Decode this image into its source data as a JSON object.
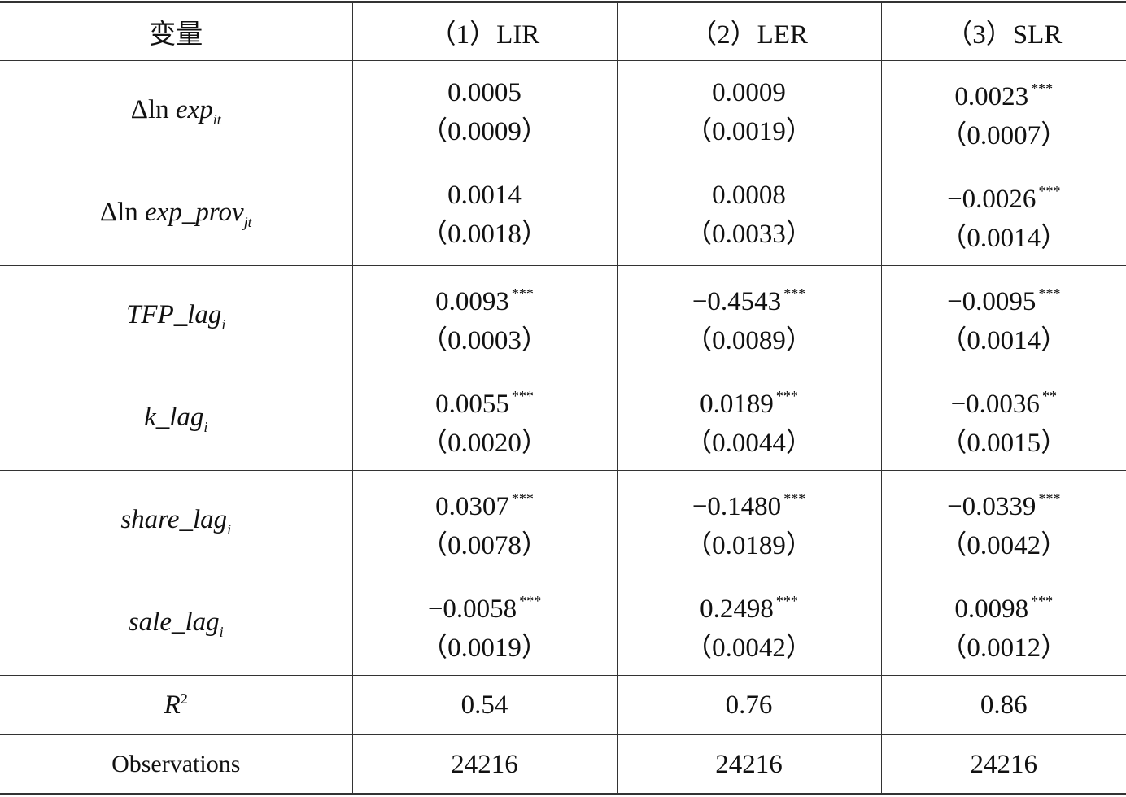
{
  "table": {
    "header": [
      "变量",
      "（1）LIR",
      "（2）LER",
      "（3）SLR"
    ],
    "rows": [
      {
        "variable": {
          "prefix": "Δln",
          "name": "exp",
          "sub": "it"
        },
        "cells": [
          {
            "coef": "0.0005",
            "se": "（0.0009）"
          },
          {
            "coef": "0.0009",
            "se": "（0.0019）"
          },
          {
            "coef": "0.0023",
            "stars": "***",
            "se": "（0.0007）"
          }
        ]
      },
      {
        "variable": {
          "prefix": "Δln",
          "name": "exp_prov",
          "sub": "jt"
        },
        "cells": [
          {
            "coef": "0.0014",
            "se": "（0.0018）"
          },
          {
            "coef": "0.0008",
            "se": "（0.0033）"
          },
          {
            "coef": "−0.0026",
            "stars": "***",
            "se": "（0.0014）"
          }
        ]
      },
      {
        "variable": {
          "name": "TFP_lag",
          "sub": "i"
        },
        "cells": [
          {
            "coef": "0.0093",
            "stars": "***",
            "se": "（0.0003）"
          },
          {
            "coef": "−0.4543",
            "stars": "***",
            "se": "（0.0089）"
          },
          {
            "coef": "−0.0095",
            "stars": "***",
            "se": "（0.0014）"
          }
        ]
      },
      {
        "variable": {
          "name": "k_lag",
          "sub": "i"
        },
        "cells": [
          {
            "coef": "0.0055",
            "stars": "***",
            "se": "（0.0020）"
          },
          {
            "coef": "0.0189",
            "stars": "***",
            "se": "（0.0044）"
          },
          {
            "coef": "−0.0036",
            "stars": "**",
            "se": "（0.0015）"
          }
        ]
      },
      {
        "variable": {
          "name": "share_lag",
          "sub": "i"
        },
        "cells": [
          {
            "coef": "0.0307",
            "stars": "***",
            "se": "（0.0078）"
          },
          {
            "coef": "−0.1480",
            "stars": "***",
            "se": "（0.0189）"
          },
          {
            "coef": "−0.0339",
            "stars": "***",
            "se": "（0.0042）"
          }
        ]
      },
      {
        "variable": {
          "name": "sale_lag",
          "sub": "i"
        },
        "cells": [
          {
            "coef": "−0.0058",
            "stars": "***",
            "se": "（0.0019）"
          },
          {
            "coef": "0.2498",
            "stars": "***",
            "se": "（0.0042）"
          },
          {
            "coef": "0.0098",
            "stars": "***",
            "se": "（0.0012）"
          }
        ]
      },
      {
        "variable": {
          "name": "R",
          "sup": "2"
        },
        "cells": [
          {
            "coef": "0.54"
          },
          {
            "coef": "0.76"
          },
          {
            "coef": "0.86"
          }
        ]
      },
      {
        "variable": {
          "text": "Observations"
        },
        "cells": [
          {
            "coef": "24216"
          },
          {
            "coef": "24216"
          },
          {
            "coef": "24216"
          }
        ]
      }
    ]
  }
}
